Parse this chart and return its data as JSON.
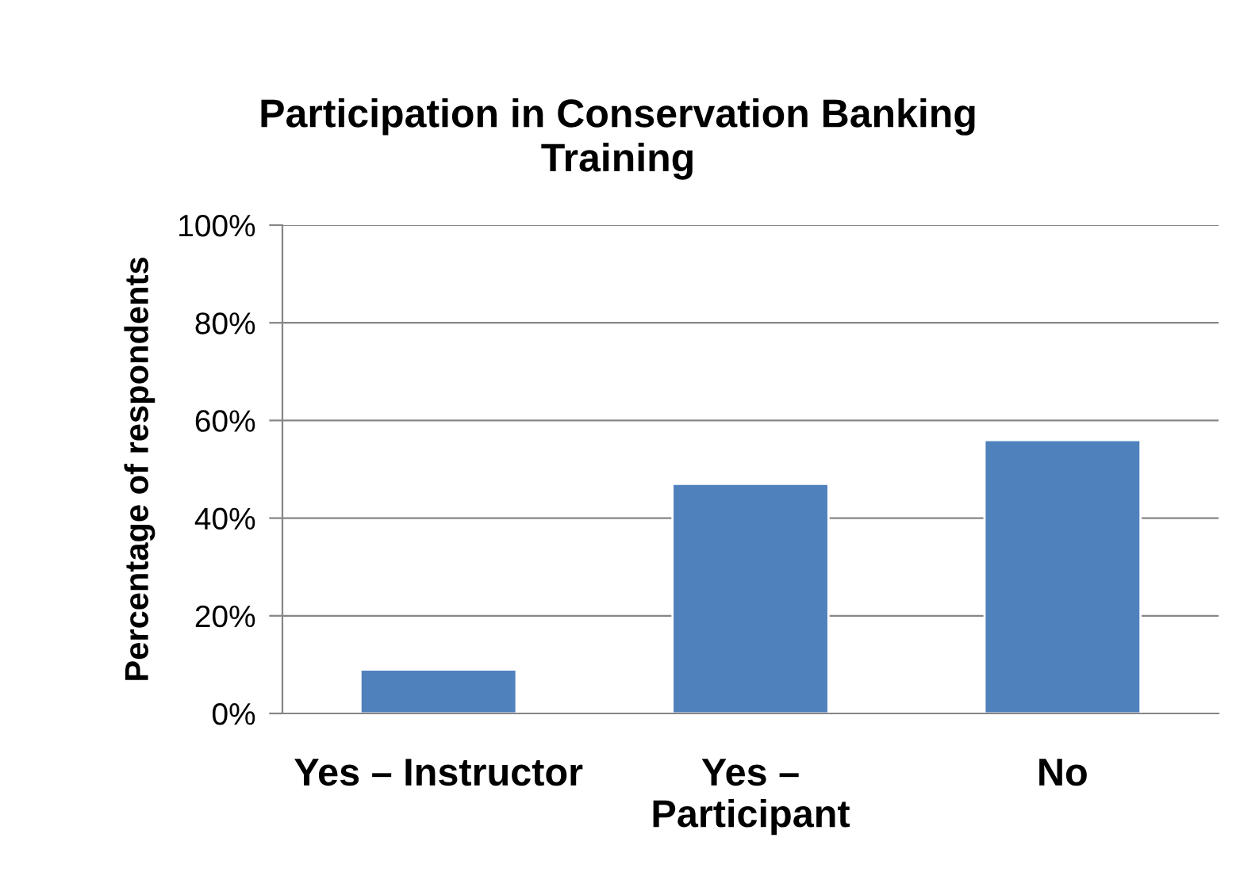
{
  "chart_data": {
    "type": "bar",
    "title": "Participation in Conservation Banking Training",
    "ylabel": "Percentage of respondents",
    "categories": [
      "Yes – Instructor",
      "Yes – Participant",
      "No"
    ],
    "values": [
      9,
      47,
      56
    ],
    "color": "#4f81bd",
    "ylim": [
      0,
      100
    ],
    "yticks": [
      {
        "value": 0,
        "label": "0%"
      },
      {
        "value": 20,
        "label": "20%"
      },
      {
        "value": 40,
        "label": "40%"
      },
      {
        "value": 60,
        "label": "60%"
      },
      {
        "value": 80,
        "label": "80%"
      },
      {
        "value": 100,
        "label": "100%"
      }
    ],
    "grid": "y"
  }
}
